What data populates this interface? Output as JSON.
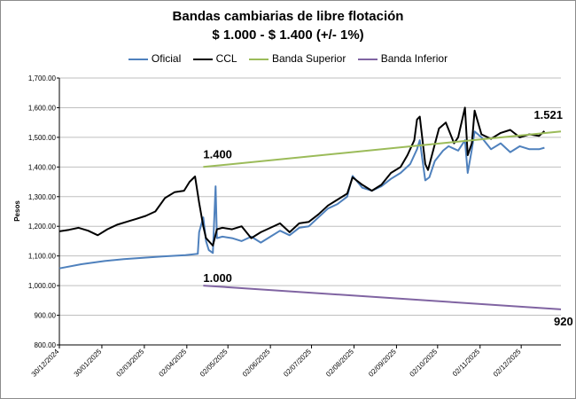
{
  "chart_data": {
    "type": "line",
    "title": "Bandas cambiarias de libre flotación",
    "subtitle": "$ 1.000 - $ 1.400 (+/- 1%)",
    "xlabel": "",
    "ylabel": "Pesos",
    "ylim": [
      800,
      1700
    ],
    "yticks": [
      "800.00",
      "900.00",
      "1,000.00",
      "1,100.00",
      "1,200.00",
      "1,300.00",
      "1,400.00",
      "1,500.00",
      "1,600.00",
      "1,700.00"
    ],
    "ytick_values": [
      800,
      900,
      1000,
      1100,
      1200,
      1300,
      1400,
      1500,
      1600,
      1700
    ],
    "xlim": [
      "2024-12-30",
      "2025-12-31"
    ],
    "xticks": [
      "30/12/2024",
      "30/01/2025",
      "02/03/2025",
      "02/04/2025",
      "02/05/2025",
      "02/06/2025",
      "02/07/2025",
      "02/08/2025",
      "02/09/2025",
      "02/10/2025",
      "02/11/2025",
      "02/12/2025"
    ],
    "xtick_dates": [
      "2024-12-30",
      "2025-01-30",
      "2025-03-02",
      "2025-04-02",
      "2025-05-02",
      "2025-06-02",
      "2025-07-02",
      "2025-08-02",
      "2025-09-02",
      "2025-10-02",
      "2025-11-02",
      "2025-12-02"
    ],
    "grid": true,
    "legend_position": "top",
    "series": [
      {
        "name": "Oficial",
        "color": "#4f81bd",
        "points": [
          [
            "2024-12-30",
            1058
          ],
          [
            "2025-01-15",
            1072
          ],
          [
            "2025-02-01",
            1083
          ],
          [
            "2025-02-15",
            1089
          ],
          [
            "2025-03-01",
            1094
          ],
          [
            "2025-03-15",
            1098
          ],
          [
            "2025-04-01",
            1103
          ],
          [
            "2025-04-10",
            1107
          ],
          [
            "2025-04-11",
            1180
          ],
          [
            "2025-04-14",
            1230
          ],
          [
            "2025-04-16",
            1150
          ],
          [
            "2025-04-18",
            1120
          ],
          [
            "2025-04-21",
            1110
          ],
          [
            "2025-04-23",
            1335
          ],
          [
            "2025-04-24",
            1160
          ],
          [
            "2025-04-28",
            1165
          ],
          [
            "2025-05-05",
            1160
          ],
          [
            "2025-05-12",
            1150
          ],
          [
            "2025-05-19",
            1165
          ],
          [
            "2025-05-26",
            1145
          ],
          [
            "2025-06-02",
            1165
          ],
          [
            "2025-06-09",
            1185
          ],
          [
            "2025-06-16",
            1170
          ],
          [
            "2025-06-23",
            1195
          ],
          [
            "2025-06-30",
            1200
          ],
          [
            "2025-07-07",
            1230
          ],
          [
            "2025-07-14",
            1260
          ],
          [
            "2025-07-21",
            1275
          ],
          [
            "2025-07-28",
            1300
          ],
          [
            "2025-08-01",
            1370
          ],
          [
            "2025-08-08",
            1330
          ],
          [
            "2025-08-15",
            1320
          ],
          [
            "2025-08-22",
            1335
          ],
          [
            "2025-08-29",
            1360
          ],
          [
            "2025-09-05",
            1380
          ],
          [
            "2025-09-12",
            1410
          ],
          [
            "2025-09-17",
            1460
          ],
          [
            "2025-09-19",
            1490
          ],
          [
            "2025-09-23",
            1355
          ],
          [
            "2025-09-26",
            1365
          ],
          [
            "2025-09-30",
            1420
          ],
          [
            "2025-10-06",
            1455
          ],
          [
            "2025-10-10",
            1470
          ],
          [
            "2025-10-17",
            1455
          ],
          [
            "2025-10-22",
            1490
          ],
          [
            "2025-10-24",
            1380
          ],
          [
            "2025-10-27",
            1460
          ],
          [
            "2025-10-29",
            1520
          ],
          [
            "2025-11-03",
            1500
          ],
          [
            "2025-11-10",
            1460
          ],
          [
            "2025-11-17",
            1480
          ],
          [
            "2025-11-24",
            1450
          ],
          [
            "2025-12-01",
            1470
          ],
          [
            "2025-12-08",
            1460
          ],
          [
            "2025-12-15",
            1460
          ],
          [
            "2025-12-19",
            1465
          ]
        ]
      },
      {
        "name": "CCL",
        "color": "#000000",
        "points": [
          [
            "2024-12-30",
            1183
          ],
          [
            "2025-01-06",
            1188
          ],
          [
            "2025-01-13",
            1195
          ],
          [
            "2025-01-20",
            1185
          ],
          [
            "2025-01-27",
            1170
          ],
          [
            "2025-02-03",
            1190
          ],
          [
            "2025-02-10",
            1205
          ],
          [
            "2025-02-17",
            1215
          ],
          [
            "2025-02-24",
            1225
          ],
          [
            "2025-03-03",
            1235
          ],
          [
            "2025-03-10",
            1250
          ],
          [
            "2025-03-17",
            1295
          ],
          [
            "2025-03-24",
            1315
          ],
          [
            "2025-03-31",
            1320
          ],
          [
            "2025-04-04",
            1350
          ],
          [
            "2025-04-08",
            1368
          ],
          [
            "2025-04-11",
            1280
          ],
          [
            "2025-04-14",
            1200
          ],
          [
            "2025-04-16",
            1160
          ],
          [
            "2025-04-21",
            1135
          ],
          [
            "2025-04-24",
            1190
          ],
          [
            "2025-04-28",
            1195
          ],
          [
            "2025-05-05",
            1190
          ],
          [
            "2025-05-12",
            1200
          ],
          [
            "2025-05-19",
            1160
          ],
          [
            "2025-05-26",
            1180
          ],
          [
            "2025-06-02",
            1195
          ],
          [
            "2025-06-09",
            1210
          ],
          [
            "2025-06-16",
            1180
          ],
          [
            "2025-06-23",
            1210
          ],
          [
            "2025-06-30",
            1215
          ],
          [
            "2025-07-07",
            1240
          ],
          [
            "2025-07-14",
            1270
          ],
          [
            "2025-07-21",
            1290
          ],
          [
            "2025-07-28",
            1310
          ],
          [
            "2025-08-01",
            1365
          ],
          [
            "2025-08-08",
            1340
          ],
          [
            "2025-08-15",
            1320
          ],
          [
            "2025-08-22",
            1340
          ],
          [
            "2025-08-29",
            1380
          ],
          [
            "2025-09-05",
            1400
          ],
          [
            "2025-09-10",
            1440
          ],
          [
            "2025-09-15",
            1490
          ],
          [
            "2025-09-17",
            1560
          ],
          [
            "2025-09-19",
            1570
          ],
          [
            "2025-09-23",
            1410
          ],
          [
            "2025-09-25",
            1390
          ],
          [
            "2025-09-29",
            1460
          ],
          [
            "2025-10-03",
            1530
          ],
          [
            "2025-10-08",
            1550
          ],
          [
            "2025-10-14",
            1480
          ],
          [
            "2025-10-17",
            1500
          ],
          [
            "2025-10-22",
            1600
          ],
          [
            "2025-10-24",
            1440
          ],
          [
            "2025-10-27",
            1480
          ],
          [
            "2025-10-29",
            1590
          ],
          [
            "2025-11-03",
            1510
          ],
          [
            "2025-11-10",
            1495
          ],
          [
            "2025-11-17",
            1515
          ],
          [
            "2025-11-24",
            1525
          ],
          [
            "2025-12-01",
            1500
          ],
          [
            "2025-12-08",
            1510
          ],
          [
            "2025-12-15",
            1505
          ],
          [
            "2025-12-19",
            1521
          ]
        ]
      },
      {
        "name": "Banda Superior",
        "color": "#9bbb59",
        "points": [
          [
            "2025-04-14",
            1400
          ],
          [
            "2025-12-31",
            1520
          ]
        ]
      },
      {
        "name": "Banda Inferior",
        "color": "#8064a2",
        "points": [
          [
            "2025-04-14",
            1000
          ],
          [
            "2025-12-31",
            920
          ]
        ]
      }
    ],
    "annotations": [
      {
        "text": "1.400",
        "x": "2025-04-14",
        "y": 1400
      },
      {
        "text": "1.000",
        "x": "2025-04-14",
        "y": 1000
      },
      {
        "text": "1.521",
        "x": "2025-12-19",
        "y": 1521
      },
      {
        "text": "920",
        "x": "2025-12-31",
        "y": 920
      }
    ]
  }
}
